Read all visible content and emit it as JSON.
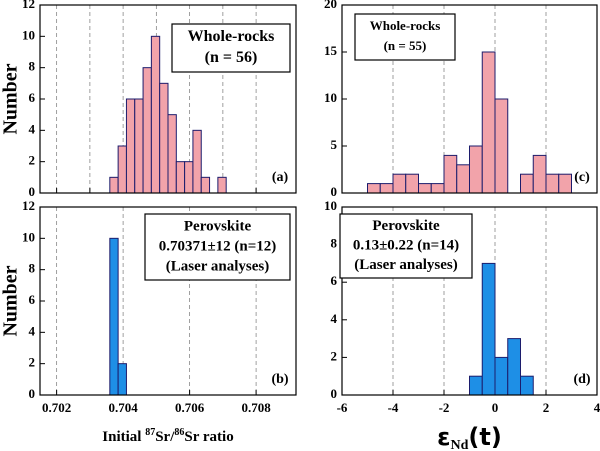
{
  "chart_data": [
    {
      "type": "histogram",
      "ylabel": "Number",
      "bins": [
        0.7036,
        0.70385,
        0.7041,
        0.70435,
        0.7046,
        0.70485,
        0.7051,
        0.70535,
        0.7056,
        0.70585,
        0.7061,
        0.70635,
        0.7066,
        0.70685,
        0.7071
      ],
      "values": [
        1,
        3,
        6,
        6,
        8,
        10,
        7,
        5,
        2,
        2,
        4,
        1,
        0,
        1
      ],
      "color": "#f2a3aa",
      "edgecolor": "#1c1c6c",
      "xlim": [
        0.7015,
        0.7092
      ],
      "xticks": [
        0.702,
        0.703,
        0.704,
        0.705,
        0.706,
        0.707,
        0.708
      ],
      "ylim": [
        0,
        12
      ],
      "yticks": [
        0,
        2,
        4,
        6,
        8,
        10,
        12
      ],
      "grid": true,
      "annotation": [
        "Whole-rocks",
        "(n = 56)"
      ],
      "panel_label": "(a)"
    },
    {
      "type": "histogram",
      "ylabel": "Number",
      "xlabel": [
        "Initial ",
        "87",
        "Sr/",
        "86",
        "Sr ratio"
      ],
      "bins": [
        0.7036,
        0.70385,
        0.7041
      ],
      "values": [
        10,
        2
      ],
      "color": "#1e8fe6",
      "edgecolor": "#1c1c6c",
      "xlim": [
        0.7015,
        0.7092
      ],
      "xticks": [
        0.702,
        0.704,
        0.706,
        0.708
      ],
      "ylim": [
        0,
        12
      ],
      "yticks": [
        0,
        2,
        4,
        6,
        8,
        10,
        12
      ],
      "grid": true,
      "annotation": [
        "Perovskite",
        "0.70371±12 (n=12)",
        "(Laser analyses)"
      ],
      "panel_label": "(b)"
    },
    {
      "type": "histogram",
      "bins": [
        -5,
        -4.5,
        -4,
        -3.5,
        -3,
        -2.5,
        -2,
        -1.5,
        -1,
        -0.5,
        0,
        0.5,
        1,
        1.5,
        2,
        2.5,
        3
      ],
      "values": [
        1,
        1,
        2,
        2,
        1,
        1,
        4,
        3,
        5,
        15,
        10,
        0,
        2,
        4,
        2,
        2
      ],
      "color": "#f2a3aa",
      "edgecolor": "#1c1c6c",
      "xlim": [
        -6,
        4
      ],
      "xticks": [
        -6,
        -4,
        -2,
        0,
        2,
        4
      ],
      "ylim": [
        0,
        20
      ],
      "yticks": [
        0,
        5,
        10,
        15,
        20
      ],
      "grid": true,
      "annotation": [
        "Whole-rocks",
        "(n = 55)"
      ],
      "panel_label": "(c)"
    },
    {
      "type": "histogram",
      "xlabel": [
        "ε",
        "Nd",
        "(t)"
      ],
      "bins": [
        -1,
        -0.5,
        0,
        0.5,
        1,
        1.5
      ],
      "values": [
        1,
        7,
        2,
        3,
        1
      ],
      "color": "#1e8fe6",
      "edgecolor": "#1c1c6c",
      "xlim": [
        -6,
        4
      ],
      "xticks": [
        -6,
        -4,
        -2,
        0,
        2,
        4
      ],
      "ylim": [
        0,
        10
      ],
      "yticks": [
        0,
        2,
        4,
        6,
        8,
        10
      ],
      "grid": true,
      "annotation": [
        "Perovskite",
        "0.13±0.22 (n=14)",
        "(Laser analyses)"
      ],
      "panel_label": "(d)"
    }
  ]
}
